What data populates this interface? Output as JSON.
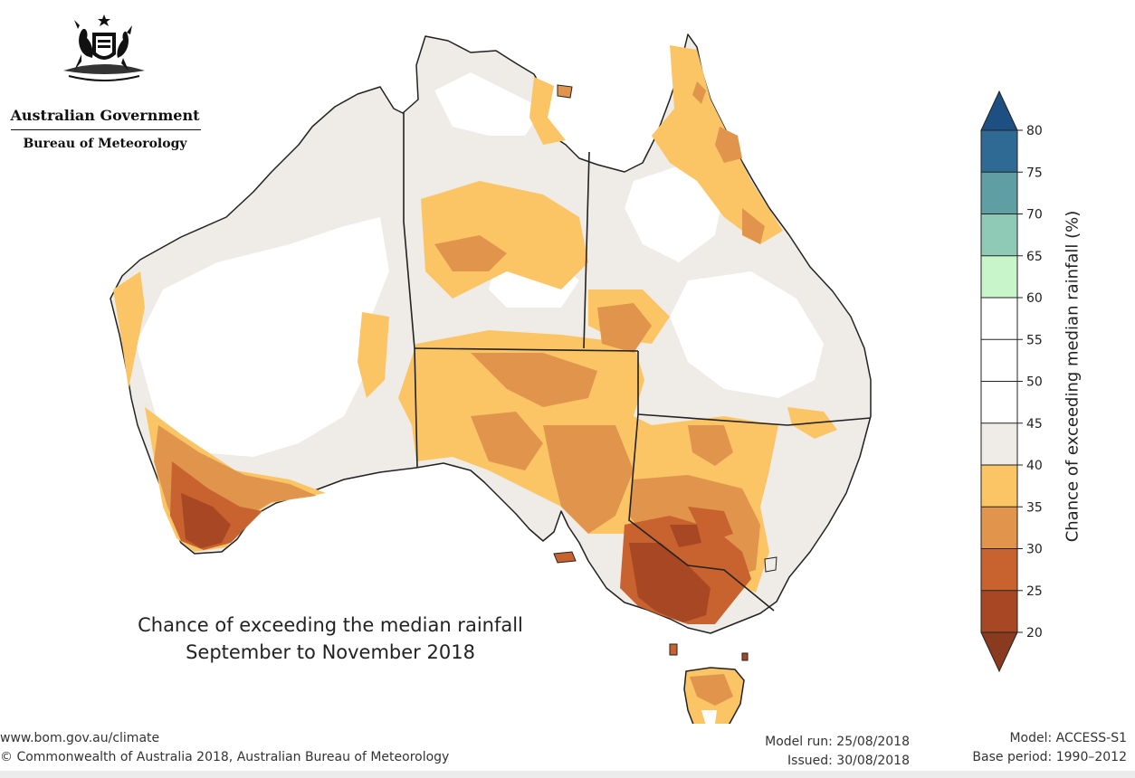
{
  "logo": {
    "gov": "Australian Government",
    "bureau": "Bureau of Meteorology"
  },
  "map": {
    "title_line1": "Chance of exceeding the median rainfall",
    "title_line2": "September to November 2018"
  },
  "legend": {
    "label": "Chance of exceeding median rainfall (%)",
    "ticks": [
      "80",
      "75",
      "70",
      "65",
      "60",
      "55",
      "50",
      "45",
      "40",
      "35",
      "30",
      "25",
      "20"
    ],
    "bins": [
      {
        "range": "75-80",
        "color": "#2e6a93"
      },
      {
        "range": "70-75",
        "color": "#5f9ea3"
      },
      {
        "range": "65-70",
        "color": "#8fcab7"
      },
      {
        "range": "60-65",
        "color": "#c8f5c9"
      },
      {
        "range": "55-60",
        "color": "#ffffff"
      },
      {
        "range": "50-55",
        "color": "#ffffff"
      },
      {
        "range": "45-50",
        "color": "#ffffff"
      },
      {
        "range": "40-45",
        "color": "#efebe6"
      },
      {
        "range": "35-40",
        "color": "#fbc565"
      },
      {
        "range": "30-35",
        "color": "#e0944c"
      },
      {
        "range": "25-30",
        "color": "#c8632f"
      },
      {
        "range": "20-25",
        "color": "#a84724"
      }
    ],
    "above_color": "#1d4f82",
    "below_color": "#8a3a1e"
  },
  "footer": {
    "url": "www.bom.gov.au/climate",
    "copyright": "© Commonwealth of Australia 2018, Australian Bureau of Meteorology",
    "model_run": "Model run: 25/08/2018",
    "issued": "Issued: 30/08/2018",
    "model": "Model: ACCESS-S1",
    "base_period": "Base period: 1990–2012"
  }
}
